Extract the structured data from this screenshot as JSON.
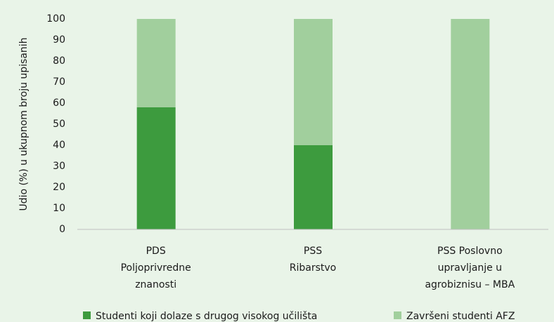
{
  "chart_data": {
    "type": "stacked_bar",
    "y_label": "Udio (%) u ukupnom broju upisanih",
    "categories": [
      [
        "PDS",
        "Poljoprivredne",
        "znanosti"
      ],
      [
        "PSS",
        "Ribarstvo"
      ],
      [
        "PSS Poslovno",
        "upravljanje u",
        "agrobiznisu – MBA"
      ]
    ],
    "series": [
      {
        "name": "Studenti koji dolaze s drugog visokog učilišta",
        "color": "#3d9b3e",
        "values": [
          58,
          40,
          0
        ]
      },
      {
        "name": "Završeni studenti AFZ",
        "color": "#a1cf9d",
        "values": [
          42,
          60,
          100
        ]
      }
    ],
    "ylim": [
      0,
      100
    ],
    "yticks": [
      0,
      10,
      20,
      30,
      40,
      50,
      60,
      70,
      80,
      90,
      100
    ],
    "legend": "bottom"
  }
}
